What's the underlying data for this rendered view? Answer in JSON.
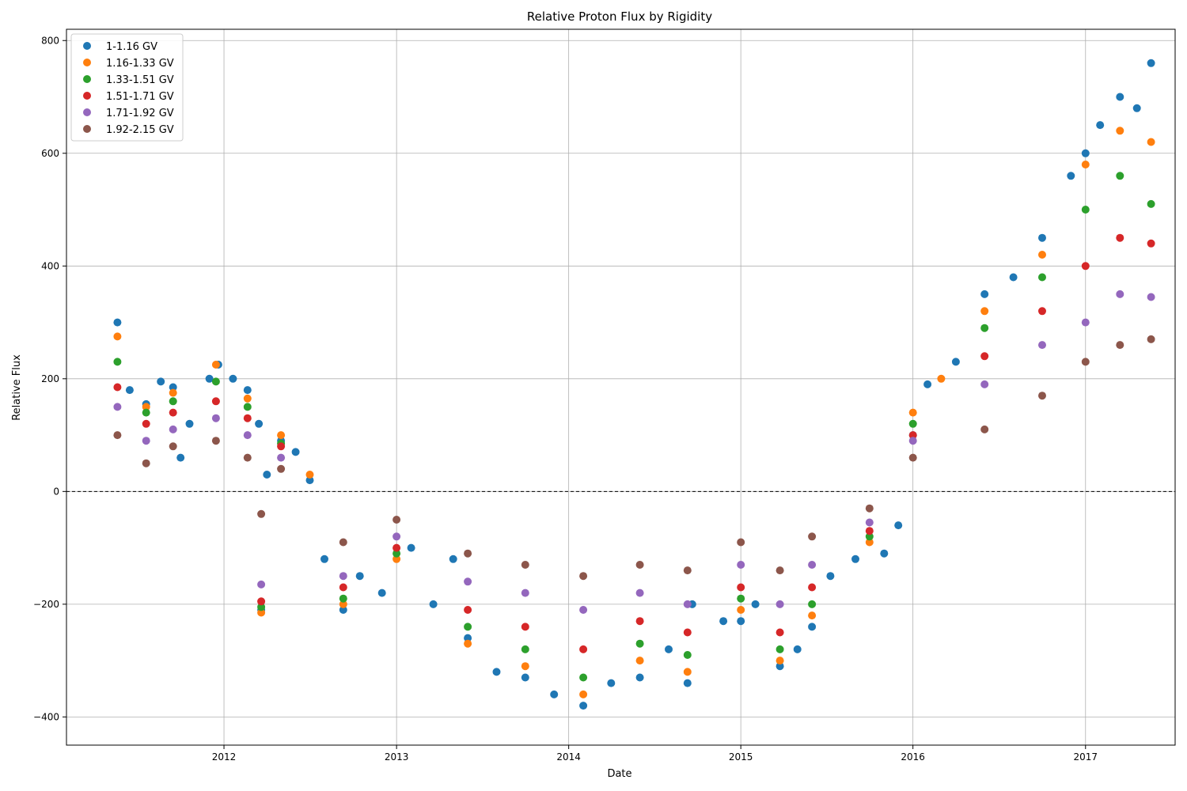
{
  "chart_data": {
    "type": "scatter",
    "title": "Relative Proton Flux by Rigidity",
    "xlabel": "Date",
    "ylabel": "Relative Flux",
    "x_axis_type": "date",
    "xlim": [
      "2011-02-01",
      "2017-07-10"
    ],
    "ylim": [
      -450,
      820
    ],
    "x_ticks": [
      "2012",
      "2013",
      "2014",
      "2015",
      "2016",
      "2017"
    ],
    "y_ticks": [
      -400,
      -200,
      0,
      200,
      400,
      600,
      800
    ],
    "grid": true,
    "reference_line": {
      "y": 0,
      "style": "dashed"
    },
    "legend_position": "top-left",
    "series": [
      {
        "name": "1-1.16 GV",
        "color": "#1f77b4",
        "scale": 1.0,
        "points": [
          [
            "2011-05-20",
            300
          ],
          [
            "2011-06-15",
            180
          ],
          [
            "2011-07-20",
            155
          ],
          [
            "2011-08-20",
            195
          ],
          [
            "2011-09-15",
            185
          ],
          [
            "2011-10-01",
            60
          ],
          [
            "2011-10-20",
            120
          ],
          [
            "2011-12-01",
            200
          ],
          [
            "2011-12-20",
            225
          ],
          [
            "2012-01-20",
            200
          ],
          [
            "2012-02-20",
            180
          ],
          [
            "2012-03-15",
            120
          ],
          [
            "2012-03-20",
            -210
          ],
          [
            "2012-04-01",
            30
          ],
          [
            "2012-05-01",
            90
          ],
          [
            "2012-06-01",
            70
          ],
          [
            "2012-07-01",
            20
          ],
          [
            "2012-08-01",
            -120
          ],
          [
            "2012-09-10",
            -210
          ],
          [
            "2012-10-15",
            -150
          ],
          [
            "2012-12-01",
            -180
          ],
          [
            "2013-02-01",
            -100
          ],
          [
            "2013-03-20",
            -200
          ],
          [
            "2013-05-01",
            -120
          ],
          [
            "2013-06-01",
            -260
          ],
          [
            "2013-08-01",
            -320
          ],
          [
            "2013-10-01",
            -330
          ],
          [
            "2013-12-01",
            -360
          ],
          [
            "2014-02-01",
            -380
          ],
          [
            "2014-04-01",
            -340
          ],
          [
            "2014-06-01",
            -330
          ],
          [
            "2014-08-01",
            -280
          ],
          [
            "2014-09-10",
            -340
          ],
          [
            "2014-09-20",
            -200
          ],
          [
            "2014-11-25",
            -230
          ],
          [
            "2015-01-01",
            -230
          ],
          [
            "2015-02-01",
            -200
          ],
          [
            "2015-03-25",
            -310
          ],
          [
            "2015-05-01",
            -280
          ],
          [
            "2015-06-01",
            -240
          ],
          [
            "2015-07-10",
            -150
          ],
          [
            "2015-09-01",
            -120
          ],
          [
            "2015-11-01",
            -110
          ],
          [
            "2015-12-01",
            -60
          ],
          [
            "2016-01-01",
            100
          ],
          [
            "2016-02-01",
            190
          ],
          [
            "2016-04-01",
            230
          ],
          [
            "2016-06-01",
            350
          ],
          [
            "2016-08-01",
            380
          ],
          [
            "2016-10-01",
            450
          ],
          [
            "2016-12-01",
            560
          ],
          [
            "2017-01-01",
            600
          ],
          [
            "2017-02-01",
            650
          ],
          [
            "2017-03-15",
            700
          ],
          [
            "2017-04-20",
            680
          ],
          [
            "2017-05-20",
            760
          ]
        ]
      },
      {
        "name": "1.16-1.33 GV",
        "color": "#ff7f0e",
        "scale": 0.9,
        "points": [
          [
            "2011-05-20",
            275
          ],
          [
            "2011-07-20",
            150
          ],
          [
            "2011-09-15",
            175
          ],
          [
            "2011-12-15",
            225
          ],
          [
            "2012-02-20",
            165
          ],
          [
            "2012-03-20",
            -215
          ],
          [
            "2012-05-01",
            100
          ],
          [
            "2012-07-01",
            30
          ],
          [
            "2012-09-10",
            -200
          ],
          [
            "2013-01-01",
            -120
          ],
          [
            "2013-06-01",
            -270
          ],
          [
            "2013-10-01",
            -310
          ],
          [
            "2014-02-01",
            -360
          ],
          [
            "2014-06-01",
            -300
          ],
          [
            "2014-09-10",
            -320
          ],
          [
            "2015-01-01",
            -210
          ],
          [
            "2015-03-25",
            -300
          ],
          [
            "2015-06-01",
            -220
          ],
          [
            "2015-10-01",
            -90
          ],
          [
            "2016-01-01",
            140
          ],
          [
            "2016-03-01",
            200
          ],
          [
            "2016-06-01",
            320
          ],
          [
            "2016-10-01",
            420
          ],
          [
            "2017-01-01",
            580
          ],
          [
            "2017-03-15",
            640
          ],
          [
            "2017-05-20",
            620
          ]
        ]
      },
      {
        "name": "1.33-1.51 GV",
        "color": "#2ca02c",
        "scale": 0.8,
        "points": [
          [
            "2011-05-20",
            230
          ],
          [
            "2011-07-20",
            140
          ],
          [
            "2011-09-15",
            160
          ],
          [
            "2011-12-15",
            195
          ],
          [
            "2012-02-20",
            150
          ],
          [
            "2012-03-20",
            -205
          ],
          [
            "2012-05-01",
            85
          ],
          [
            "2012-09-10",
            -190
          ],
          [
            "2013-01-01",
            -110
          ],
          [
            "2013-06-01",
            -240
          ],
          [
            "2013-10-01",
            -280
          ],
          [
            "2014-02-01",
            -330
          ],
          [
            "2014-06-01",
            -270
          ],
          [
            "2014-09-10",
            -290
          ],
          [
            "2015-01-01",
            -190
          ],
          [
            "2015-03-25",
            -280
          ],
          [
            "2015-06-01",
            -200
          ],
          [
            "2015-10-01",
            -80
          ],
          [
            "2016-01-01",
            120
          ],
          [
            "2016-06-01",
            290
          ],
          [
            "2016-10-01",
            380
          ],
          [
            "2017-01-01",
            500
          ],
          [
            "2017-03-15",
            560
          ],
          [
            "2017-05-20",
            510
          ]
        ]
      },
      {
        "name": "1.51-1.71 GV",
        "color": "#d62728",
        "scale": 0.68,
        "points": [
          [
            "2011-05-20",
            185
          ],
          [
            "2011-07-20",
            120
          ],
          [
            "2011-09-15",
            140
          ],
          [
            "2011-12-15",
            160
          ],
          [
            "2012-02-20",
            130
          ],
          [
            "2012-03-20",
            -195
          ],
          [
            "2012-05-01",
            80
          ],
          [
            "2012-09-10",
            -170
          ],
          [
            "2013-01-01",
            -100
          ],
          [
            "2013-06-01",
            -210
          ],
          [
            "2013-10-01",
            -240
          ],
          [
            "2014-02-01",
            -280
          ],
          [
            "2014-06-01",
            -230
          ],
          [
            "2014-09-10",
            -250
          ],
          [
            "2015-01-01",
            -170
          ],
          [
            "2015-03-25",
            -250
          ],
          [
            "2015-06-01",
            -170
          ],
          [
            "2015-10-01",
            -70
          ],
          [
            "2016-01-01",
            100
          ],
          [
            "2016-06-01",
            240
          ],
          [
            "2016-10-01",
            320
          ],
          [
            "2017-01-01",
            400
          ],
          [
            "2017-03-15",
            450
          ],
          [
            "2017-05-20",
            440
          ]
        ]
      },
      {
        "name": "1.71-1.92 GV",
        "color": "#9467bd",
        "scale": 0.53,
        "points": [
          [
            "2011-05-20",
            150
          ],
          [
            "2011-07-20",
            90
          ],
          [
            "2011-09-15",
            110
          ],
          [
            "2011-12-15",
            130
          ],
          [
            "2012-02-20",
            100
          ],
          [
            "2012-03-20",
            -165
          ],
          [
            "2012-05-01",
            60
          ],
          [
            "2012-09-10",
            -150
          ],
          [
            "2013-01-01",
            -80
          ],
          [
            "2013-06-01",
            -160
          ],
          [
            "2013-10-01",
            -180
          ],
          [
            "2014-02-01",
            -210
          ],
          [
            "2014-06-01",
            -180
          ],
          [
            "2014-09-10",
            -200
          ],
          [
            "2015-01-01",
            -130
          ],
          [
            "2015-03-25",
            -200
          ],
          [
            "2015-06-01",
            -130
          ],
          [
            "2015-10-01",
            -55
          ],
          [
            "2016-01-01",
            90
          ],
          [
            "2016-06-01",
            190
          ],
          [
            "2016-10-01",
            260
          ],
          [
            "2017-01-01",
            300
          ],
          [
            "2017-03-15",
            350
          ],
          [
            "2017-05-20",
            345
          ]
        ]
      },
      {
        "name": "1.92-2.15 GV",
        "color": "#8c564b",
        "scale": 0.4,
        "points": [
          [
            "2011-05-20",
            100
          ],
          [
            "2011-07-20",
            50
          ],
          [
            "2011-09-15",
            80
          ],
          [
            "2011-12-15",
            90
          ],
          [
            "2012-02-20",
            60
          ],
          [
            "2012-03-20",
            -40
          ],
          [
            "2012-05-01",
            40
          ],
          [
            "2012-09-10",
            -90
          ],
          [
            "2013-01-01",
            -50
          ],
          [
            "2013-06-01",
            -110
          ],
          [
            "2013-10-01",
            -130
          ],
          [
            "2014-02-01",
            -150
          ],
          [
            "2014-06-01",
            -130
          ],
          [
            "2014-09-10",
            -140
          ],
          [
            "2015-01-01",
            -90
          ],
          [
            "2015-03-25",
            -140
          ],
          [
            "2015-06-01",
            -80
          ],
          [
            "2015-10-01",
            -30
          ],
          [
            "2016-01-01",
            60
          ],
          [
            "2016-06-01",
            110
          ],
          [
            "2016-10-01",
            170
          ],
          [
            "2017-01-01",
            230
          ],
          [
            "2017-03-15",
            260
          ],
          [
            "2017-05-20",
            270
          ]
        ]
      }
    ]
  }
}
